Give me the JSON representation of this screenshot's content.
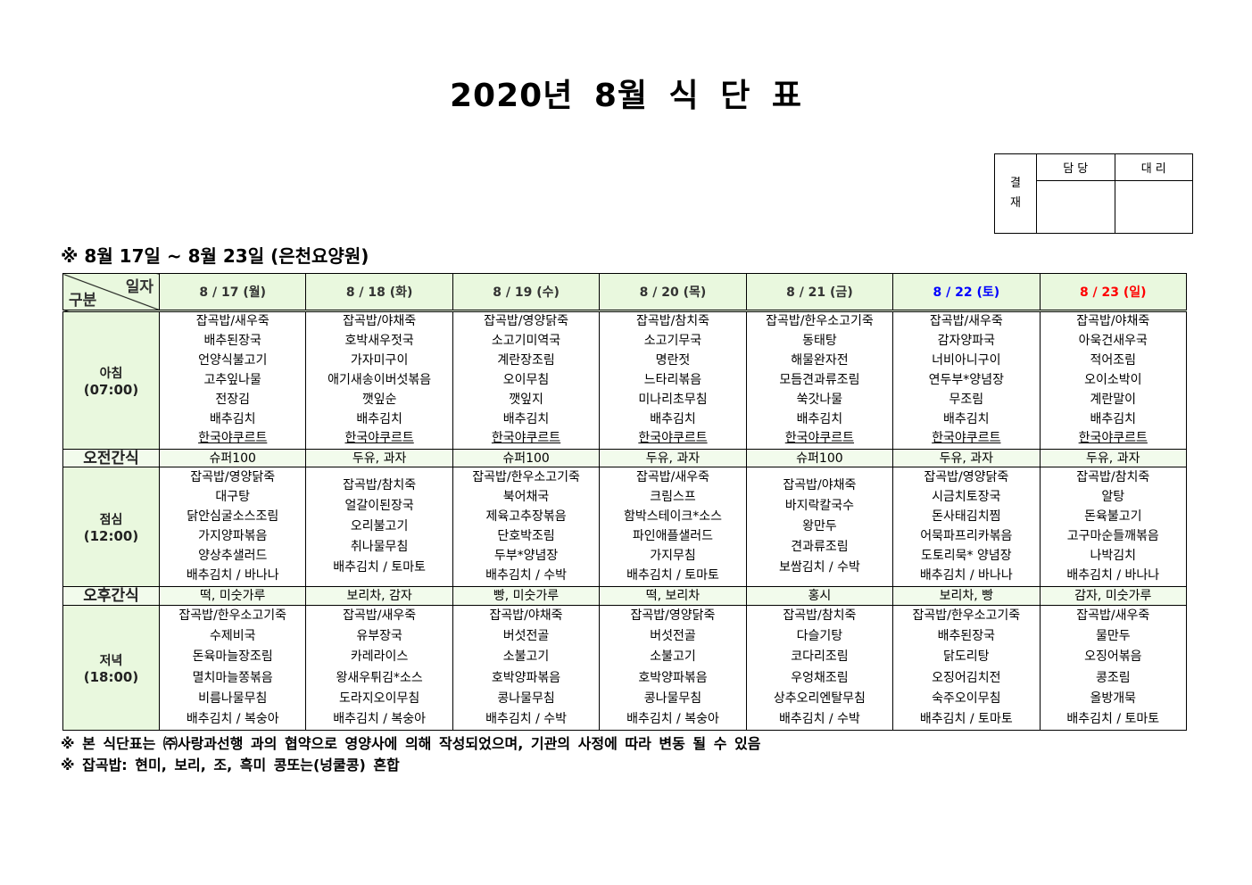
{
  "title": "2020년 8월 식 단 표",
  "approval": {
    "side": "결\n재",
    "side1": "결",
    "side2": "재",
    "col1": "담 당",
    "col2": "대 리"
  },
  "subtitle": "※ 8월 17일 ~ 8월 23일 (은천요양원)",
  "header": {
    "corner_top": "일자",
    "corner_bottom": "구분",
    "days": [
      {
        "label": "8 / 17 (월)",
        "color": "#333333"
      },
      {
        "label": "8 / 18 (화)",
        "color": "#333333"
      },
      {
        "label": "8 / 19 (수)",
        "color": "#333333"
      },
      {
        "label": "8 / 20 (목)",
        "color": "#333333"
      },
      {
        "label": "8 / 21 (금)",
        "color": "#333333"
      },
      {
        "label": "8 / 22 (토)",
        "color": "#0000ff"
      },
      {
        "label": "8 / 23 (일)",
        "color": "#ff0000"
      }
    ]
  },
  "meals": {
    "breakfast": {
      "name": "아침",
      "time": "(07:00)",
      "days": [
        [
          "잡곡밥/새우죽",
          "배추된장국",
          "언양식불고기",
          "고추잎나물",
          "전장김",
          "배추김치",
          "한국야쿠르트"
        ],
        [
          "잡곡밥/야채죽",
          "호박새우젓국",
          "가자미구이",
          "애기새송이버섯볶음",
          "깻잎순",
          "배추김치",
          "한국야쿠르트"
        ],
        [
          "잡곡밥/영양닭죽",
          "소고기미역국",
          "계란장조림",
          "오이무침",
          "깻잎지",
          "배추김치",
          "한국야쿠르트"
        ],
        [
          "잡곡밥/참치죽",
          "소고기무국",
          "명란젓",
          "느타리볶음",
          "미나리초무침",
          "배추김치",
          "한국야쿠르트"
        ],
        [
          "잡곡밥/한우소고기죽",
          "동태탕",
          "해물완자전",
          "모듬견과류조림",
          "쑥갓나물",
          "배추김치",
          "한국야쿠르트"
        ],
        [
          "잡곡밥/새우죽",
          "감자양파국",
          "너비아니구이",
          "연두부*양념장",
          "무조림",
          "배추김치",
          "한국야쿠르트"
        ],
        [
          "잡곡밥/야채죽",
          "아욱건새우국",
          "적어조림",
          "오이소박이",
          "계란말이",
          "배추김치",
          "한국야쿠르트"
        ]
      ]
    },
    "morning_snack": {
      "name": "오전간식",
      "days": [
        "슈퍼100",
        "두유, 과자",
        "슈퍼100",
        "두유, 과자",
        "슈퍼100",
        "두유, 과자",
        "두유, 과자"
      ]
    },
    "lunch": {
      "name": "점심",
      "time": "(12:00)",
      "days": [
        [
          "잡곡밥/영양닭죽",
          "대구탕",
          "닭안심굴소스조림",
          "가지양파볶음",
          "양상추샐러드",
          "배추김치 / 바나나"
        ],
        [
          "잡곡밥/참치죽",
          "얼갈이된장국",
          "오리불고기",
          "취나물무침",
          "배추김치 / 토마토"
        ],
        [
          "잡곡밥/한우소고기죽",
          "북어채국",
          "제육고추장볶음",
          "단호박조림",
          "두부*양념장",
          "배추김치 / 수박"
        ],
        [
          "잡곡밥/새우죽",
          "크림스프",
          "함박스테이크*소스",
          "파인애플샐러드",
          "가지무침",
          "배추김치 / 토마토"
        ],
        [
          "잡곡밥/야채죽",
          "바지락칼국수",
          "왕만두",
          "견과류조림",
          "보쌈김치 / 수박"
        ],
        [
          "잡곡밥/영양닭죽",
          "시금치토장국",
          "돈사태김치찜",
          "어묵파프리카볶음",
          "도토리묵* 양념장",
          "배추김치 / 바나나"
        ],
        [
          "잡곡밥/참치죽",
          "알탕",
          "돈육불고기",
          "고구마순들깨볶음",
          "나박김치",
          "배추김치 / 바나나"
        ]
      ]
    },
    "afternoon_snack": {
      "name": "오후간식",
      "days": [
        "떡, 미숫가루",
        "보리차, 감자",
        "빵, 미숫가루",
        "떡, 보리차",
        "홍시",
        "보리차, 빵",
        "감자, 미숫가루"
      ]
    },
    "dinner": {
      "name": "저녁",
      "time": "(18:00)",
      "days": [
        [
          "잡곡밥/한우소고기죽",
          "수제비국",
          "돈육마늘장조림",
          "멸치마늘쫑볶음",
          "비름나물무침",
          "배추김치 / 복숭아"
        ],
        [
          "잡곡밥/새우죽",
          "유부장국",
          "카레라이스",
          "왕새우튀김*소스",
          "도라지오이무침",
          "배추김치 / 복숭아"
        ],
        [
          "잡곡밥/야채죽",
          "버섯전골",
          "소불고기",
          "호박양파볶음",
          "콩나물무침",
          "배추김치 / 수박"
        ],
        [
          "잡곡밥/영양닭죽",
          "버섯전골",
          "소불고기",
          "호박양파볶음",
          "콩나물무침",
          "배추김치 / 복숭아"
        ],
        [
          "잡곡밥/참치죽",
          "다슬기탕",
          "코다리조림",
          "우엉채조림",
          "상추오리엔탈무침",
          "배추김치 / 수박"
        ],
        [
          "잡곡밥/한우소고기죽",
          "배추된장국",
          "닭도리탕",
          "오징어김치전",
          "숙주오이무침",
          "배추김치 / 토마토"
        ],
        [
          "잡곡밥/새우죽",
          "물만두",
          "오징어볶음",
          "콩조림",
          "올방개묵",
          "배추김치 / 토마토"
        ]
      ]
    }
  },
  "notes": [
    "※ 본 식단표는 ㈜사랑과선행 과의 협약으로 영양사에 의해 작성되었으며, 기관의 사정에 따라 변동 될 수 있음",
    "※ 잡곡밥: 현미, 보리, 조, 흑미 콩또는(넝쿨콩) 혼합"
  ]
}
